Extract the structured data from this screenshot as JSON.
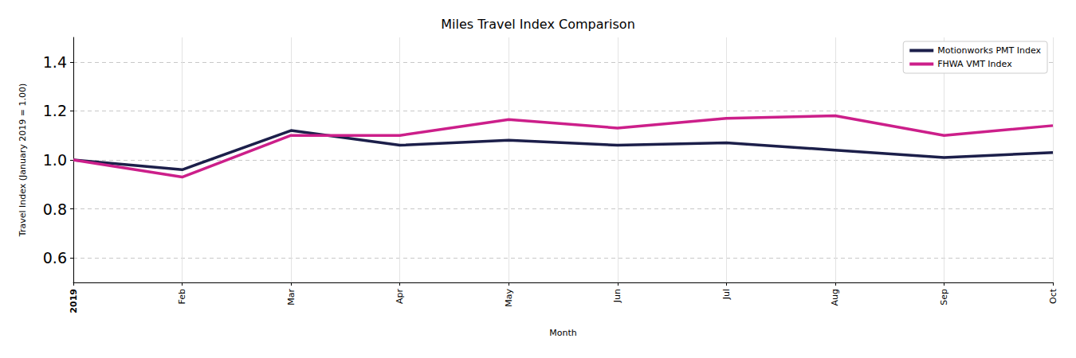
{
  "chart_data": {
    "type": "line",
    "title": "Miles Travel Index Comparison",
    "x_label": "Month",
    "y_label": "Travel Index (January 2019 = 1.00)",
    "categories": [
      "2019",
      "Feb",
      "Mar",
      "Apr",
      "May",
      "Jun",
      "Jul",
      "Aug",
      "Sep",
      "Oct"
    ],
    "series": [
      {
        "name": "Motionworks PMT Index",
        "color": "#1c1f4a",
        "values": [
          1.0,
          0.96,
          1.12,
          1.06,
          1.08,
          1.06,
          1.07,
          1.04,
          1.01,
          1.03
        ]
      },
      {
        "name": "FHWA VMT Index",
        "color": "#cc1f8a",
        "values": [
          1.0,
          0.93,
          1.1,
          1.1,
          1.165,
          1.13,
          1.17,
          1.18,
          1.1,
          1.14
        ]
      }
    ],
    "ylim": [
      0.5,
      1.5
    ],
    "yticks": [
      0.6,
      0.8,
      {
        "value": 1,
        "label": "1.0"
      },
      1.2,
      1.4
    ],
    "grid": true,
    "legend": "upper right"
  }
}
